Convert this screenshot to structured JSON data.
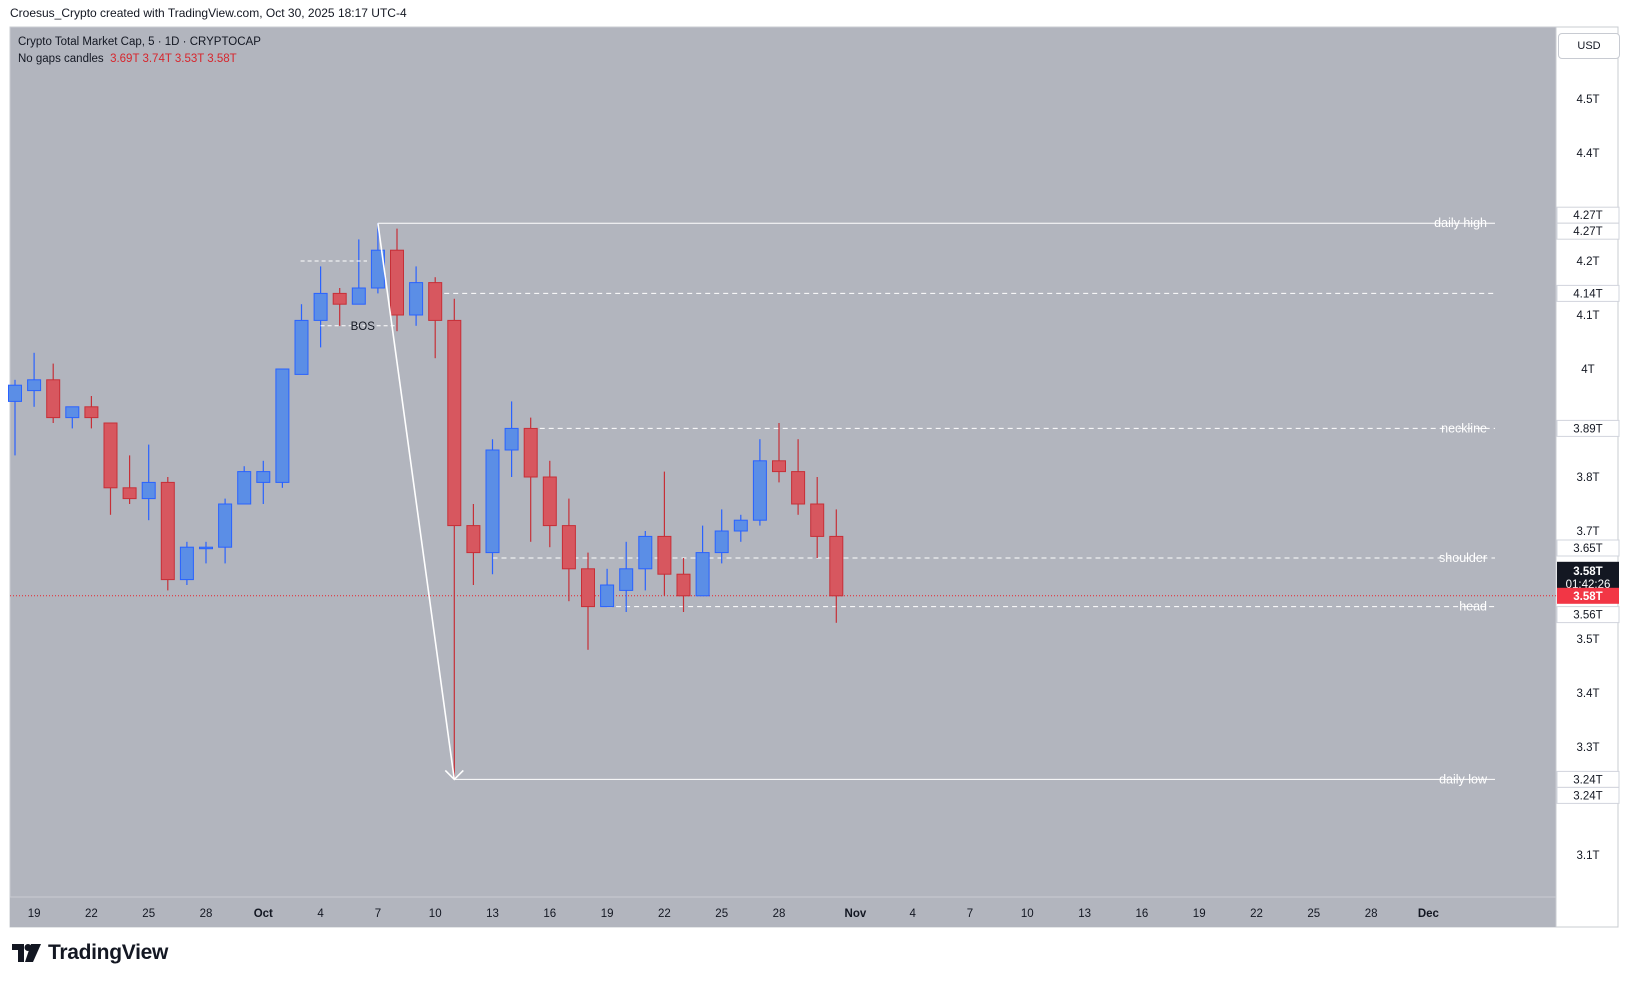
{
  "header": {
    "attribution": "Croesus_Crypto created with TradingView.com, Oct 30, 2025 18:17 UTC-4"
  },
  "legend": {
    "title": "Crypto Total Market Cap, 5 · 1D · CRYPTOCAP",
    "series_label": "No gaps candles",
    "open": "3.69T",
    "high": "3.74T",
    "low": "3.53T",
    "close": "3.58T"
  },
  "currency": "USD",
  "branding": {
    "logo_text": "TradingView"
  },
  "colors": {
    "background": "#b2b5be",
    "up": "#5b8ee6",
    "down": "#d7575f",
    "level": "#ffffff",
    "price": "#e8242d"
  },
  "chart_data": {
    "type": "candlestick",
    "unit": "T",
    "y_axis": {
      "ticks": [
        3.1,
        3.2,
        3.3,
        3.4,
        3.5,
        3.6,
        3.7,
        3.8,
        3.9,
        4.0,
        4.1,
        4.2,
        4.3,
        4.4,
        4.5
      ],
      "tick_labels": [
        "3.1T",
        "",
        "3.3T",
        "3.4T",
        "3.5T",
        "",
        "3.7T",
        "3.8T",
        "",
        "4T",
        "4.1T",
        "4.2T",
        "",
        "4.4T",
        "4.5T"
      ]
    },
    "x_axis": {
      "ticks": [
        "2025-09-19",
        "2025-09-22",
        "2025-09-25",
        "2025-09-28",
        "2025-10-01",
        "2025-10-04",
        "2025-10-07",
        "2025-10-10",
        "2025-10-13",
        "2025-10-16",
        "2025-10-19",
        "2025-10-22",
        "2025-10-25",
        "2025-10-28",
        "2025-11-01",
        "2025-11-04",
        "2025-11-07",
        "2025-11-10",
        "2025-11-13",
        "2025-11-16",
        "2025-11-19",
        "2025-11-22",
        "2025-11-25",
        "2025-11-28",
        "2025-12-01"
      ],
      "tick_labels": [
        "19",
        "22",
        "25",
        "28",
        "Oct",
        "4",
        "7",
        "10",
        "13",
        "16",
        "19",
        "22",
        "25",
        "28",
        "Nov",
        "4",
        "7",
        "10",
        "13",
        "16",
        "19",
        "22",
        "25",
        "28",
        "Dec"
      ]
    },
    "candles": [
      {
        "date": "2025-09-18",
        "o": 3.94,
        "h": 3.98,
        "l": 3.84,
        "c": 3.97
      },
      {
        "date": "2025-09-19",
        "o": 3.96,
        "h": 4.03,
        "l": 3.93,
        "c": 3.98
      },
      {
        "date": "2025-09-20",
        "o": 3.98,
        "h": 4.01,
        "l": 3.9,
        "c": 3.91
      },
      {
        "date": "2025-09-21",
        "o": 3.91,
        "h": 3.93,
        "l": 3.89,
        "c": 3.93
      },
      {
        "date": "2025-09-22",
        "o": 3.93,
        "h": 3.95,
        "l": 3.89,
        "c": 3.91
      },
      {
        "date": "2025-09-23",
        "o": 3.9,
        "h": 3.9,
        "l": 3.73,
        "c": 3.78
      },
      {
        "date": "2025-09-24",
        "o": 3.78,
        "h": 3.84,
        "l": 3.75,
        "c": 3.76
      },
      {
        "date": "2025-09-25",
        "o": 3.76,
        "h": 3.86,
        "l": 3.72,
        "c": 3.79
      },
      {
        "date": "2025-09-26",
        "o": 3.79,
        "h": 3.8,
        "l": 3.59,
        "c": 3.61
      },
      {
        "date": "2025-09-27",
        "o": 3.61,
        "h": 3.68,
        "l": 3.6,
        "c": 3.67
      },
      {
        "date": "2025-09-28",
        "o": 3.67,
        "h": 3.68,
        "l": 3.64,
        "c": 3.67
      },
      {
        "date": "2025-09-29",
        "o": 3.67,
        "h": 3.76,
        "l": 3.64,
        "c": 3.75
      },
      {
        "date": "2025-09-30",
        "o": 3.75,
        "h": 3.82,
        "l": 3.75,
        "c": 3.81
      },
      {
        "date": "2025-10-01",
        "o": 3.79,
        "h": 3.83,
        "l": 3.75,
        "c": 3.81
      },
      {
        "date": "2025-10-02",
        "o": 3.79,
        "h": 4.0,
        "l": 3.78,
        "c": 4.0
      },
      {
        "date": "2025-10-03",
        "o": 3.99,
        "h": 4.12,
        "l": 3.99,
        "c": 4.09
      },
      {
        "date": "2025-10-04",
        "o": 4.09,
        "h": 4.19,
        "l": 4.04,
        "c": 4.14
      },
      {
        "date": "2025-10-05",
        "o": 4.14,
        "h": 4.15,
        "l": 4.08,
        "c": 4.12
      },
      {
        "date": "2025-10-06",
        "o": 4.12,
        "h": 4.24,
        "l": 4.12,
        "c": 4.15
      },
      {
        "date": "2025-10-07",
        "o": 4.15,
        "h": 4.27,
        "l": 4.14,
        "c": 4.22
      },
      {
        "date": "2025-10-08",
        "o": 4.22,
        "h": 4.26,
        "l": 4.07,
        "c": 4.1
      },
      {
        "date": "2025-10-09",
        "o": 4.1,
        "h": 4.19,
        "l": 4.08,
        "c": 4.16
      },
      {
        "date": "2025-10-10",
        "o": 4.16,
        "h": 4.17,
        "l": 4.02,
        "c": 4.09
      },
      {
        "date": "2025-10-11",
        "o": 4.09,
        "h": 4.13,
        "l": 3.24,
        "c": 3.71
      },
      {
        "date": "2025-10-12",
        "o": 3.71,
        "h": 3.75,
        "l": 3.6,
        "c": 3.66
      },
      {
        "date": "2025-10-13",
        "o": 3.66,
        "h": 3.87,
        "l": 3.62,
        "c": 3.85
      },
      {
        "date": "2025-10-14",
        "o": 3.85,
        "h": 3.94,
        "l": 3.8,
        "c": 3.89
      },
      {
        "date": "2025-10-15",
        "o": 3.89,
        "h": 3.91,
        "l": 3.68,
        "c": 3.8
      },
      {
        "date": "2025-10-16",
        "o": 3.8,
        "h": 3.83,
        "l": 3.67,
        "c": 3.71
      },
      {
        "date": "2025-10-17",
        "o": 3.71,
        "h": 3.76,
        "l": 3.57,
        "c": 3.63
      },
      {
        "date": "2025-10-18",
        "o": 3.63,
        "h": 3.66,
        "l": 3.48,
        "c": 3.56
      },
      {
        "date": "2025-10-19",
        "o": 3.56,
        "h": 3.63,
        "l": 3.56,
        "c": 3.6
      },
      {
        "date": "2025-10-20",
        "o": 3.59,
        "h": 3.68,
        "l": 3.55,
        "c": 3.63
      },
      {
        "date": "2025-10-21",
        "o": 3.63,
        "h": 3.7,
        "l": 3.59,
        "c": 3.69
      },
      {
        "date": "2025-10-22",
        "o": 3.69,
        "h": 3.81,
        "l": 3.58,
        "c": 3.62
      },
      {
        "date": "2025-10-23",
        "o": 3.62,
        "h": 3.65,
        "l": 3.55,
        "c": 3.58
      },
      {
        "date": "2025-10-24",
        "o": 3.58,
        "h": 3.71,
        "l": 3.58,
        "c": 3.66
      },
      {
        "date": "2025-10-25",
        "o": 3.66,
        "h": 3.74,
        "l": 3.64,
        "c": 3.7
      },
      {
        "date": "2025-10-26",
        "o": 3.7,
        "h": 3.73,
        "l": 3.68,
        "c": 3.72
      },
      {
        "date": "2025-10-27",
        "o": 3.72,
        "h": 3.87,
        "l": 3.71,
        "c": 3.83
      },
      {
        "date": "2025-10-28",
        "o": 3.83,
        "h": 3.9,
        "l": 3.79,
        "c": 3.81
      },
      {
        "date": "2025-10-29",
        "o": 3.81,
        "h": 3.87,
        "l": 3.73,
        "c": 3.75
      },
      {
        "date": "2025-10-30",
        "o": 3.75,
        "h": 3.8,
        "l": 3.65,
        "c": 3.69
      },
      {
        "date": "2025-10-31",
        "o": 3.69,
        "h": 3.74,
        "l": 3.53,
        "c": 3.58
      }
    ],
    "levels": [
      {
        "name": "daily high",
        "value": 4.27,
        "style": "solid",
        "from": "2025-10-07"
      },
      {
        "name": "",
        "value": 4.14,
        "style": "dashed",
        "from": "2025-10-10"
      },
      {
        "name": "neckline",
        "value": 3.89,
        "style": "dashed",
        "from": "2025-10-15"
      },
      {
        "name": "shoulder",
        "value": 3.65,
        "style": "dashed",
        "from": "2025-10-13"
      },
      {
        "name": "head",
        "value": 3.56,
        "style": "dashed",
        "from": "2025-10-19"
      },
      {
        "name": "daily low",
        "value": 3.24,
        "style": "solid",
        "from": "2025-10-11"
      }
    ],
    "bos": {
      "label": "BOS",
      "value": 4.08,
      "from": "2025-10-04",
      "to": "2025-10-08",
      "top_value": 4.2
    },
    "arrow": {
      "from": {
        "date": "2025-10-07",
        "value": 4.27
      },
      "to": {
        "date": "2025-10-11",
        "value": 3.24
      }
    },
    "price_line": {
      "value": 3.58,
      "label": "3.58T"
    },
    "axis_badges": [
      {
        "value": 4.27,
        "label": "4.27T",
        "kind": "white"
      },
      {
        "value": 4.27,
        "label": "4.27T",
        "kind": "white"
      },
      {
        "value": 4.14,
        "label": "4.14T",
        "kind": "white"
      },
      {
        "value": 3.89,
        "label": "3.89T",
        "kind": "white"
      },
      {
        "value": 3.65,
        "label": "3.65T",
        "kind": "white"
      },
      {
        "value": 3.58,
        "label": "3.58T",
        "sublabel": "01:42:26",
        "kind": "black"
      },
      {
        "value": 3.58,
        "label": "3.58T",
        "kind": "red"
      },
      {
        "value": 3.56,
        "label": "3.56T",
        "kind": "white"
      },
      {
        "value": 3.24,
        "label": "3.24T",
        "kind": "white"
      },
      {
        "value": 3.24,
        "label": "3.24T",
        "kind": "white"
      }
    ]
  }
}
